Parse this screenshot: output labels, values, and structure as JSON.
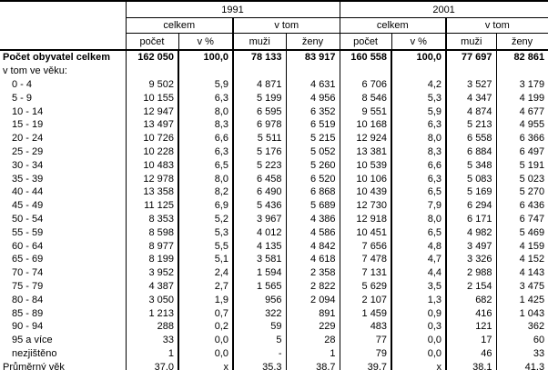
{
  "header": {
    "years": [
      "1991",
      "2001"
    ],
    "group_celkem": "celkem",
    "group_vtom": "v tom",
    "columns": [
      "počet",
      "v %",
      "muži",
      "ženy"
    ]
  },
  "table": {
    "rows": [
      {
        "label": "Počet obyvatel celkem",
        "bold": true,
        "indent": 0,
        "values": [
          "162 050",
          "100,0",
          "78 133",
          "83 917",
          "160 558",
          "100,0",
          "77 697",
          "82 861"
        ]
      },
      {
        "label": "v tom ve věku:",
        "bold": false,
        "indent": 0,
        "values": [
          "",
          "",
          "",
          "",
          "",
          "",
          "",
          ""
        ]
      },
      {
        "label": "0 - 4",
        "bold": false,
        "indent": 1,
        "values": [
          "9 502",
          "5,9",
          "4 871",
          "4 631",
          "6 706",
          "4,2",
          "3 527",
          "3 179"
        ]
      },
      {
        "label": "5 - 9",
        "bold": false,
        "indent": 1,
        "values": [
          "10 155",
          "6,3",
          "5 199",
          "4 956",
          "8 546",
          "5,3",
          "4 347",
          "4 199"
        ]
      },
      {
        "label": "10 - 14",
        "bold": false,
        "indent": 1,
        "values": [
          "12 947",
          "8,0",
          "6 595",
          "6 352",
          "9 551",
          "5,9",
          "4 874",
          "4 677"
        ]
      },
      {
        "label": "15 - 19",
        "bold": false,
        "indent": 1,
        "values": [
          "13 497",
          "8,3",
          "6 978",
          "6 519",
          "10 168",
          "6,3",
          "5 213",
          "4 955"
        ]
      },
      {
        "label": "20 - 24",
        "bold": false,
        "indent": 1,
        "values": [
          "10 726",
          "6,6",
          "5 511",
          "5 215",
          "12 924",
          "8,0",
          "6 558",
          "6 366"
        ]
      },
      {
        "label": "25 - 29",
        "bold": false,
        "indent": 1,
        "values": [
          "10 228",
          "6,3",
          "5 176",
          "5 052",
          "13 381",
          "8,3",
          "6 884",
          "6 497"
        ]
      },
      {
        "label": "30 - 34",
        "bold": false,
        "indent": 1,
        "values": [
          "10 483",
          "6,5",
          "5 223",
          "5 260",
          "10 539",
          "6,6",
          "5 348",
          "5 191"
        ]
      },
      {
        "label": "35 - 39",
        "bold": false,
        "indent": 1,
        "values": [
          "12 978",
          "8,0",
          "6 458",
          "6 520",
          "10 106",
          "6,3",
          "5 083",
          "5 023"
        ]
      },
      {
        "label": "40 - 44",
        "bold": false,
        "indent": 1,
        "values": [
          "13 358",
          "8,2",
          "6 490",
          "6 868",
          "10 439",
          "6,5",
          "5 169",
          "5 270"
        ]
      },
      {
        "label": "45 - 49",
        "bold": false,
        "indent": 1,
        "values": [
          "11 125",
          "6,9",
          "5 436",
          "5 689",
          "12 730",
          "7,9",
          "6 294",
          "6 436"
        ]
      },
      {
        "label": "50 - 54",
        "bold": false,
        "indent": 1,
        "values": [
          "8 353",
          "5,2",
          "3 967",
          "4 386",
          "12 918",
          "8,0",
          "6 171",
          "6 747"
        ]
      },
      {
        "label": "55 - 59",
        "bold": false,
        "indent": 1,
        "values": [
          "8 598",
          "5,3",
          "4 012",
          "4 586",
          "10 451",
          "6,5",
          "4 982",
          "5 469"
        ]
      },
      {
        "label": "60 - 64",
        "bold": false,
        "indent": 1,
        "values": [
          "8 977",
          "5,5",
          "4 135",
          "4 842",
          "7 656",
          "4,8",
          "3 497",
          "4 159"
        ]
      },
      {
        "label": "65 - 69",
        "bold": false,
        "indent": 1,
        "values": [
          "8 199",
          "5,1",
          "3 581",
          "4 618",
          "7 478",
          "4,7",
          "3 326",
          "4 152"
        ]
      },
      {
        "label": "70 - 74",
        "bold": false,
        "indent": 1,
        "values": [
          "3 952",
          "2,4",
          "1 594",
          "2 358",
          "7 131",
          "4,4",
          "2 988",
          "4 143"
        ]
      },
      {
        "label": "75 - 79",
        "bold": false,
        "indent": 1,
        "values": [
          "4 387",
          "2,7",
          "1 565",
          "2 822",
          "5 629",
          "3,5",
          "2 154",
          "3 475"
        ]
      },
      {
        "label": "80 - 84",
        "bold": false,
        "indent": 1,
        "values": [
          "3 050",
          "1,9",
          "956",
          "2 094",
          "2 107",
          "1,3",
          "682",
          "1 425"
        ]
      },
      {
        "label": "85 - 89",
        "bold": false,
        "indent": 1,
        "values": [
          "1 213",
          "0,7",
          "322",
          "891",
          "1 459",
          "0,9",
          "416",
          "1 043"
        ]
      },
      {
        "label": "90 - 94",
        "bold": false,
        "indent": 1,
        "values": [
          "288",
          "0,2",
          "59",
          "229",
          "483",
          "0,3",
          "121",
          "362"
        ]
      },
      {
        "label": "95 a více",
        "bold": false,
        "indent": 1,
        "values": [
          "33",
          "0,0",
          "5",
          "28",
          "77",
          "0,0",
          "17",
          "60"
        ]
      },
      {
        "label": "nezjištěno",
        "bold": false,
        "indent": 1,
        "values": [
          "1",
          "0,0",
          "-",
          "1",
          "79",
          "0,0",
          "46",
          "33"
        ]
      },
      {
        "label": "Průměrný věk",
        "bold": false,
        "indent": 0,
        "values": [
          "37,0",
          "x",
          "35,3",
          "38,7",
          "39,7",
          "x",
          "38,1",
          "41,3"
        ]
      }
    ]
  }
}
